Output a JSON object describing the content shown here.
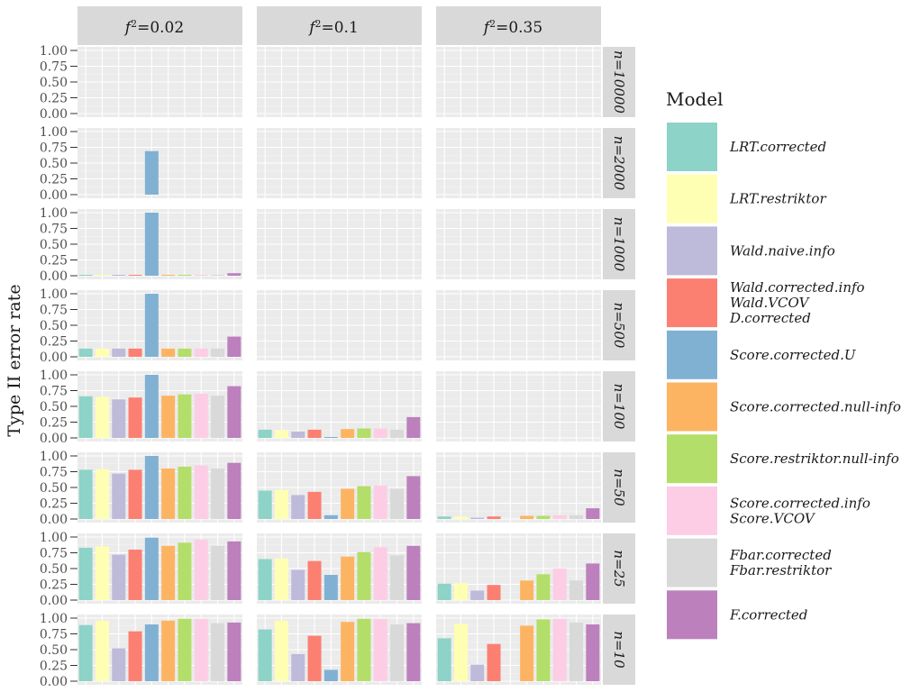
{
  "chart_data": {
    "type": "bar",
    "ylabel": "Type II error rate",
    "xlabel": "",
    "ylim": [
      0,
      1
    ],
    "yticks": [
      "0.00",
      "0.25",
      "0.50",
      "0.75",
      "1.00"
    ],
    "ytick_values": [
      0,
      0.25,
      0.5,
      0.75,
      1.0
    ],
    "legend_title": "Model",
    "legend_position": "right",
    "models": [
      {
        "name": "LRT.corrected",
        "label_lines": [
          "LRT.corrected"
        ],
        "color": "#8DD3C7"
      },
      {
        "name": "LRT.restriktor",
        "label_lines": [
          "LRT.restriktor"
        ],
        "color": "#FFFFB3"
      },
      {
        "name": "Wald.naive.info",
        "label_lines": [
          "Wald.naive.info"
        ],
        "color": "#BEBADA"
      },
      {
        "name": "Wald.corrected.info / Wald.VCOV / D.corrected",
        "label_lines": [
          "Wald.corrected.info",
          "Wald.VCOV",
          "D.corrected"
        ],
        "color": "#FB8072"
      },
      {
        "name": "Score.corrected.U",
        "label_lines": [
          "Score.corrected.U"
        ],
        "color": "#80B1D3"
      },
      {
        "name": "Score.corrected.null-info",
        "label_lines": [
          "Score.corrected.null-info"
        ],
        "color": "#FDB462"
      },
      {
        "name": "Score.restriktor.null-info",
        "label_lines": [
          "Score.restriktor.null-info"
        ],
        "color": "#B3DE69"
      },
      {
        "name": "Score.corrected.info / Score.VCOV",
        "label_lines": [
          "Score.corrected.info",
          "Score.VCOV"
        ],
        "color": "#FCCDE5"
      },
      {
        "name": "Fbar.corrected / Fbar.restriktor",
        "label_lines": [
          "Fbar.corrected",
          "Fbar.restriktor"
        ],
        "color": "#D9D9D9"
      },
      {
        "name": "F.corrected",
        "label_lines": [
          "F.corrected"
        ],
        "color": "#BC80BD"
      }
    ],
    "columns": [
      {
        "prefix": "f",
        "sup": "2",
        "suffix": "=0.02"
      },
      {
        "prefix": "f",
        "sup": "2",
        "suffix": "=0.1"
      },
      {
        "prefix": "f",
        "sup": "2",
        "suffix": "=0.35"
      }
    ],
    "rows": [
      "n=10000",
      "n=2000",
      "n=1000",
      "n=500",
      "n=100",
      "n=50",
      "n=25",
      "n=10"
    ],
    "values": [
      [
        [
          0,
          0,
          0,
          0,
          0,
          0,
          0,
          0,
          0,
          0
        ],
        [
          0,
          0,
          0,
          0,
          0,
          0,
          0,
          0,
          0,
          0
        ],
        [
          0,
          0,
          0,
          0,
          0,
          0,
          0,
          0,
          0,
          0
        ]
      ],
      [
        [
          0,
          0,
          0,
          0,
          0.69,
          0,
          0,
          0,
          0,
          0
        ],
        [
          0,
          0,
          0,
          0,
          0,
          0,
          0,
          0,
          0,
          0
        ],
        [
          0,
          0,
          0,
          0,
          0,
          0,
          0,
          0,
          0,
          0
        ]
      ],
      [
        [
          0.01,
          0.01,
          0.01,
          0.01,
          1.0,
          0.01,
          0.01,
          0.01,
          0.01,
          0.04
        ],
        [
          0,
          0,
          0,
          0,
          0,
          0,
          0,
          0,
          0,
          0
        ],
        [
          0,
          0,
          0,
          0,
          0,
          0,
          0,
          0,
          0,
          0
        ]
      ],
      [
        [
          0.13,
          0.13,
          0.13,
          0.13,
          1.0,
          0.13,
          0.13,
          0.13,
          0.13,
          0.32
        ],
        [
          0,
          0,
          0,
          0,
          0,
          0,
          0,
          0,
          0,
          0
        ],
        [
          0,
          0,
          0,
          0,
          0,
          0,
          0,
          0,
          0,
          0
        ]
      ],
      [
        [
          0.66,
          0.65,
          0.61,
          0.64,
          1.0,
          0.67,
          0.69,
          0.7,
          0.67,
          0.82
        ],
        [
          0.13,
          0.12,
          0.1,
          0.13,
          0.01,
          0.14,
          0.15,
          0.15,
          0.13,
          0.33
        ],
        [
          0,
          0,
          0,
          0,
          0,
          0,
          0,
          0,
          0,
          0
        ]
      ],
      [
        [
          0.78,
          0.79,
          0.72,
          0.78,
          1.0,
          0.8,
          0.83,
          0.85,
          0.8,
          0.89
        ],
        [
          0.45,
          0.46,
          0.38,
          0.43,
          0.06,
          0.48,
          0.52,
          0.53,
          0.48,
          0.68
        ],
        [
          0.04,
          0.04,
          0.02,
          0.04,
          0.0,
          0.05,
          0.05,
          0.06,
          0.06,
          0.17
        ]
      ],
      [
        [
          0.83,
          0.85,
          0.72,
          0.8,
          0.99,
          0.86,
          0.91,
          0.96,
          0.86,
          0.93
        ],
        [
          0.65,
          0.66,
          0.48,
          0.62,
          0.4,
          0.69,
          0.76,
          0.84,
          0.71,
          0.86
        ],
        [
          0.26,
          0.27,
          0.15,
          0.24,
          0.0,
          0.31,
          0.41,
          0.5,
          0.31,
          0.58
        ]
      ],
      [
        [
          0.89,
          0.96,
          0.52,
          0.79,
          0.9,
          0.96,
          0.99,
          0.99,
          0.92,
          0.93
        ],
        [
          0.82,
          0.96,
          0.43,
          0.72,
          0.18,
          0.94,
          0.99,
          0.99,
          0.9,
          0.92
        ],
        [
          0.68,
          0.91,
          0.26,
          0.59,
          0.0,
          0.88,
          0.98,
          0.99,
          0.93,
          0.9
        ]
      ]
    ]
  }
}
